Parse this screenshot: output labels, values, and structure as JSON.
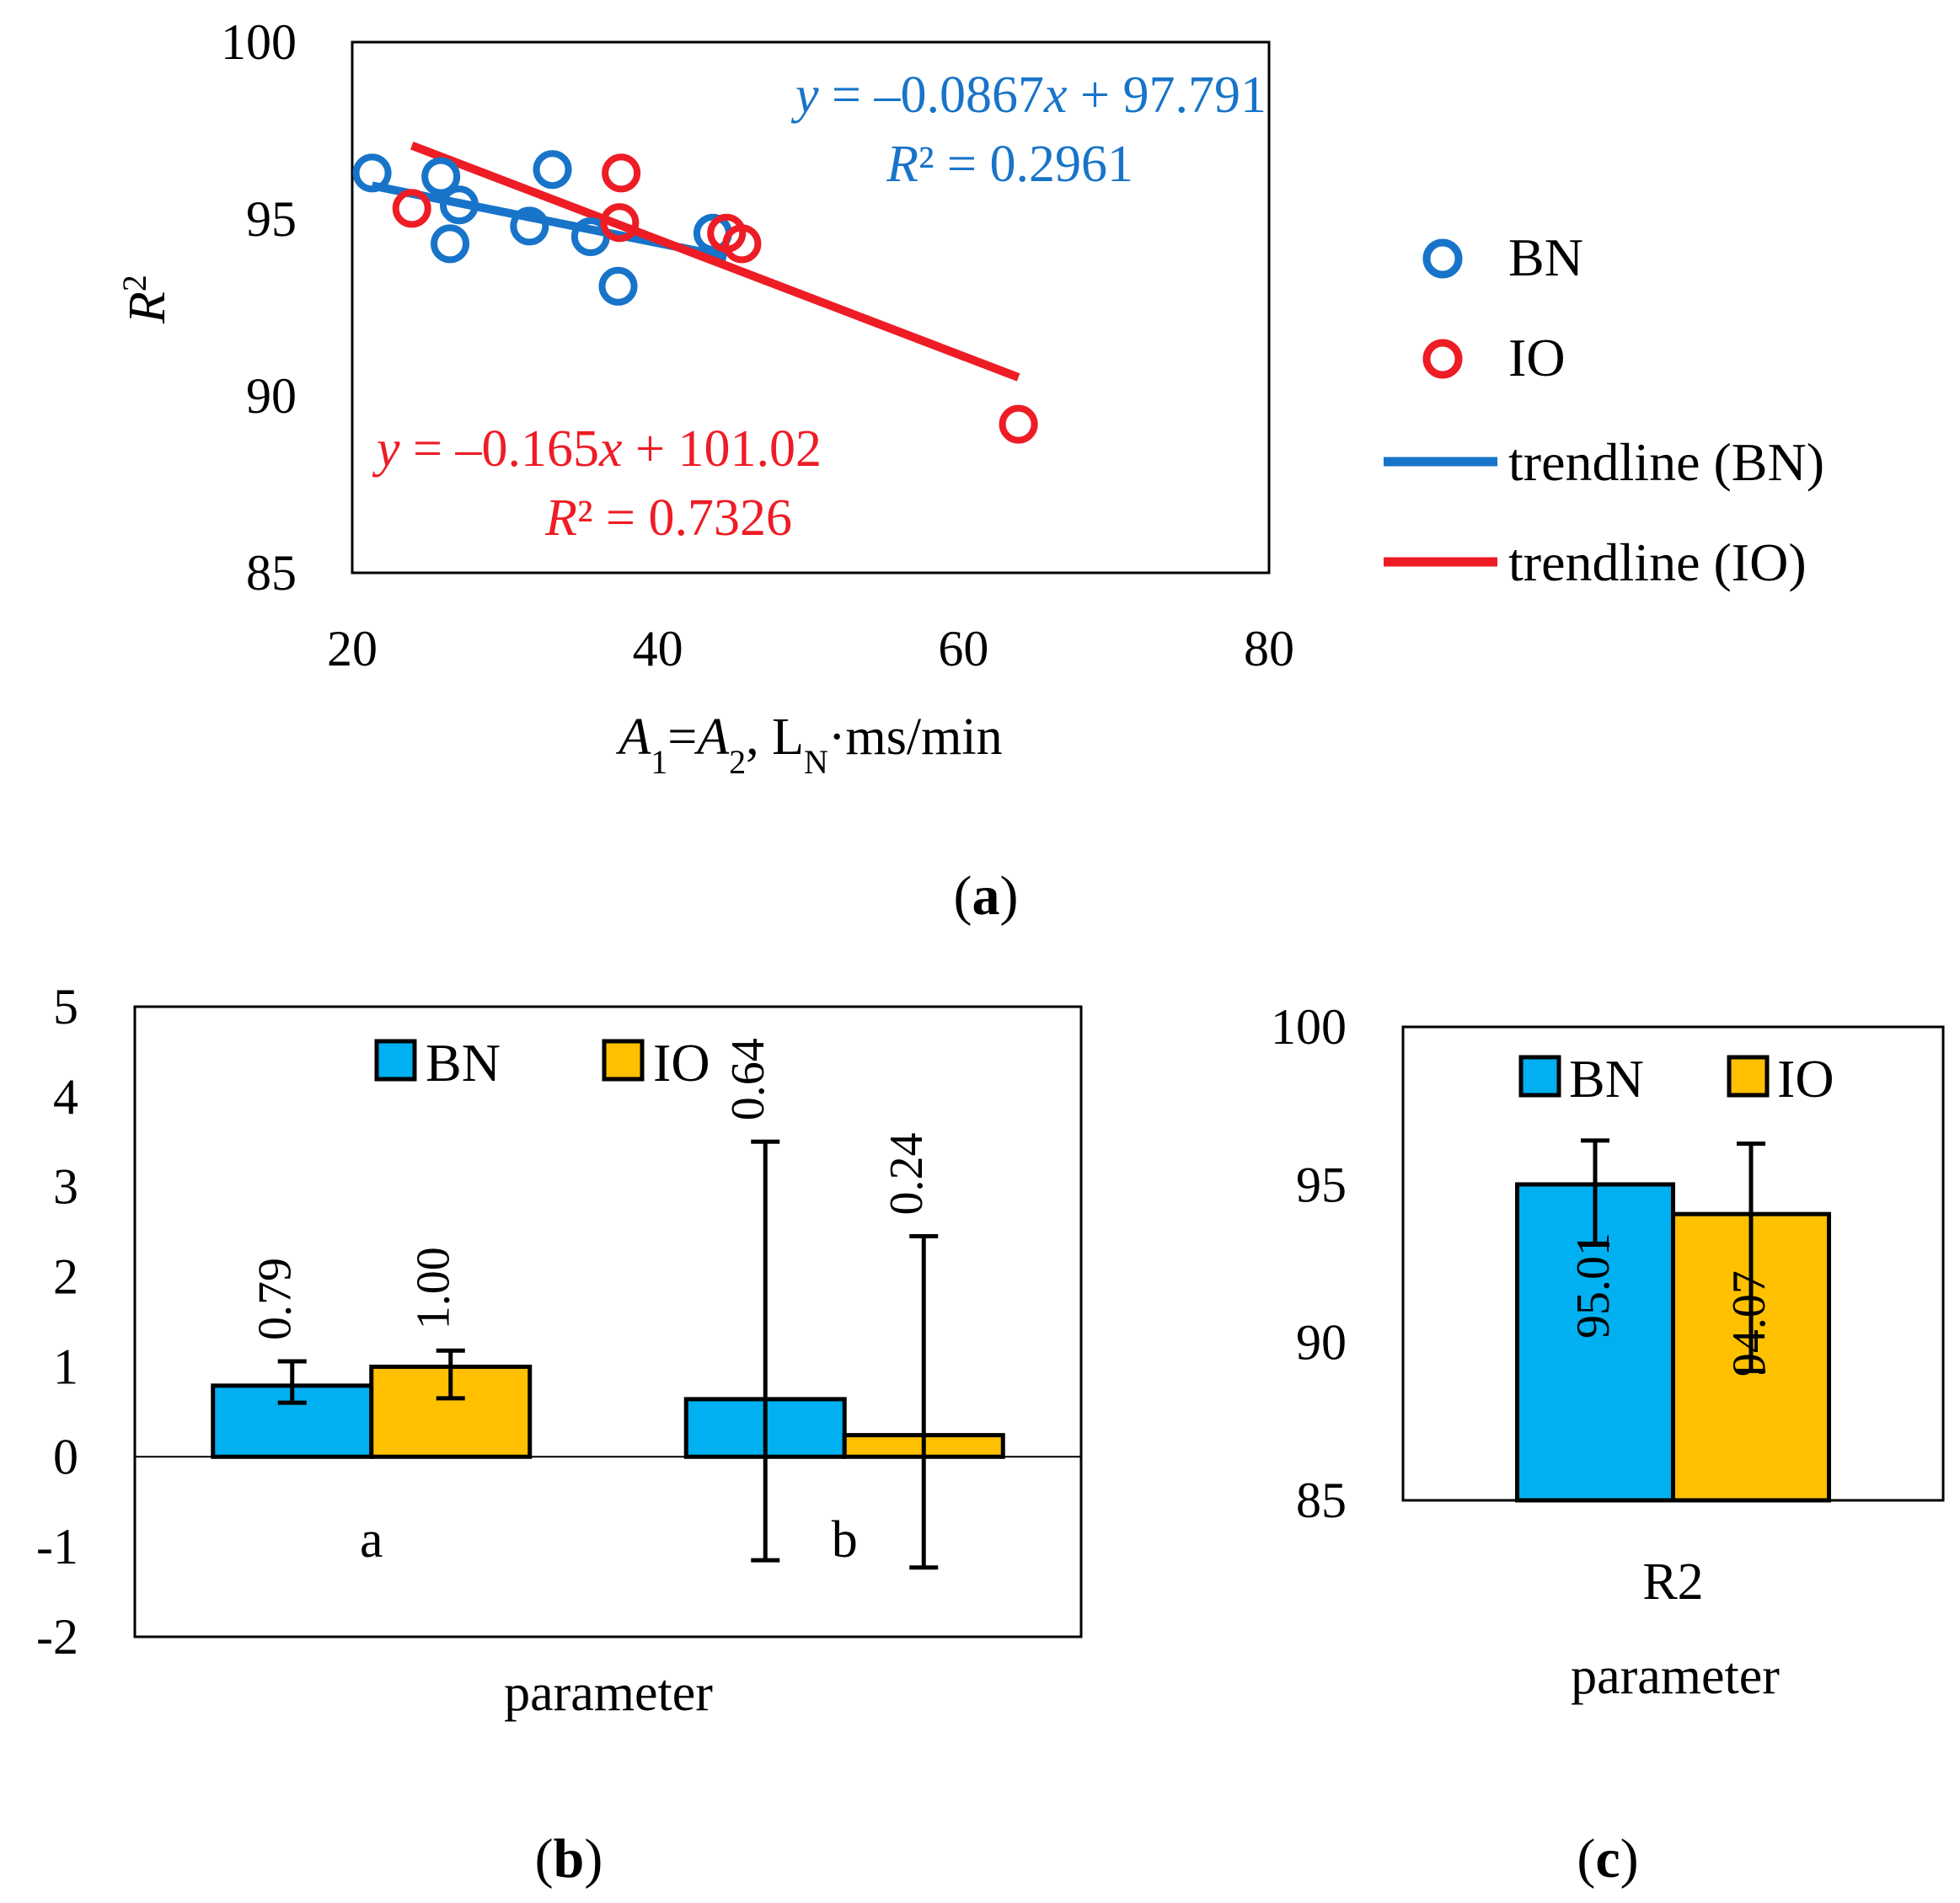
{
  "colors": {
    "bn_scatter": "#1874C9",
    "io_scatter": "#EE1C25",
    "bn_bar": "#00B0F0",
    "io_bar": "#FFC000"
  },
  "chart_data": [
    {
      "type": "scatter",
      "caption": "(a)",
      "ylabel": "R²",
      "xlabel": "A1=A2, LN·ms/min",
      "xlim": [
        20,
        80
      ],
      "ylim": [
        85,
        100
      ],
      "x_ticks": [
        "20",
        "40",
        "60",
        "80"
      ],
      "y_ticks": [
        "85",
        "90",
        "95",
        "100"
      ],
      "series": [
        {
          "name": "BN",
          "x": [
            21.3,
            25.8,
            26.4,
            27.0,
            31.6,
            33.1,
            35.6,
            37.4,
            43.6
          ],
          "y": [
            96.3,
            96.2,
            94.3,
            95.4,
            94.8,
            96.4,
            94.5,
            93.1,
            94.6
          ]
        },
        {
          "name": "IO",
          "x": [
            23.9,
            37.5,
            37.6,
            44.5,
            45.5,
            63.6
          ],
          "y": [
            95.3,
            94.9,
            96.3,
            94.6,
            94.3,
            89.2
          ]
        }
      ],
      "trendlines": [
        {
          "name": "trendline (BN)",
          "slope": -0.0867,
          "intercept": 97.791,
          "x_range": [
            21.3,
            44.5
          ],
          "equation_text": "y = –0.0867x + 97.791",
          "r2_text": "R² = 0.2961"
        },
        {
          "name": "trendline (IO)",
          "slope": -0.165,
          "intercept": 101.02,
          "x_range": [
            23.9,
            63.6
          ],
          "equation_text": "y = –0.165x + 101.02",
          "r2_text": "R² = 0.7326"
        }
      ],
      "legend": [
        "BN",
        "IO",
        "trendline (BN)",
        "trendline (IO)"
      ],
      "legend_position": "right"
    },
    {
      "type": "bar",
      "caption": "(b)",
      "xlabel": "parameter",
      "categories": [
        "a",
        "b"
      ],
      "ylim": [
        -2,
        5
      ],
      "y_ticks": [
        "-2",
        "-1",
        "0",
        "1",
        "2",
        "3",
        "4",
        "5"
      ],
      "series": [
        {
          "name": "BN",
          "values": [
            0.79,
            0.64
          ],
          "labels": [
            "0.79",
            "0.64"
          ],
          "error_low": [
            0.6,
            -1.15
          ],
          "error_high": [
            1.06,
            3.5
          ]
        },
        {
          "name": "IO",
          "values": [
            1.0,
            0.24
          ],
          "labels": [
            "1.00",
            "0.24"
          ],
          "error_low": [
            0.65,
            -1.23
          ],
          "error_high": [
            1.18,
            2.45
          ]
        }
      ],
      "legend": [
        "BN",
        "IO"
      ],
      "legend_position": "top"
    },
    {
      "type": "bar",
      "caption": "(c)",
      "xlabel": "parameter",
      "categories": [
        "R2"
      ],
      "ylim": [
        85,
        100
      ],
      "y_ticks": [
        "85",
        "90",
        "95",
        "100"
      ],
      "series": [
        {
          "name": "BN",
          "values": [
            95.01
          ],
          "labels": [
            "95.01"
          ],
          "error_low": [
            93.1
          ],
          "error_high": [
            96.4
          ]
        },
        {
          "name": "IO",
          "values": [
            94.07
          ],
          "labels": [
            "94.07"
          ],
          "error_low": [
            89.1
          ],
          "error_high": [
            96.3
          ]
        }
      ],
      "legend": [
        "BN",
        "IO"
      ],
      "legend_position": "top"
    }
  ]
}
